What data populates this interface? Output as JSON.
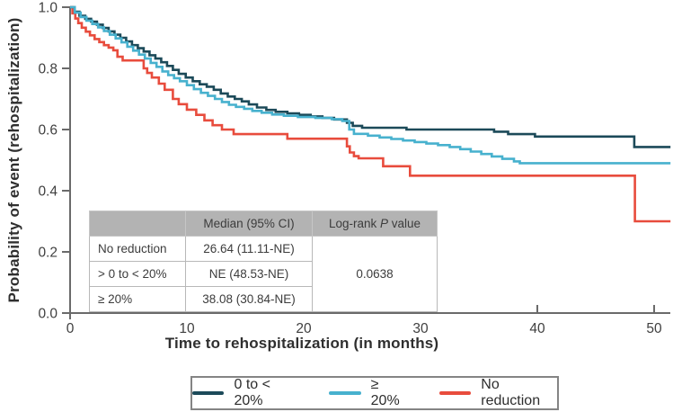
{
  "figure": {
    "ylabel": "Probability of event (rehospitalization)",
    "xlabel": "Time to rehospitalization (in months)"
  },
  "chart_data": {
    "type": "line",
    "subtype": "kaplan-meier-step",
    "title": "",
    "xlabel": "Time to rehospitalization (in months)",
    "ylabel": "Probability of event (rehospitalization)",
    "xlim": [
      0,
      51.4
    ],
    "ylim": [
      0.0,
      1.0
    ],
    "xticks": [
      "0",
      "10",
      "20",
      "30",
      "40",
      "50"
    ],
    "yticks": [
      "0.0",
      "0.2",
      "0.4",
      "0.6",
      "0.8",
      "1.0"
    ],
    "grid": "off",
    "legend_position": "bottom",
    "series": [
      {
        "name": "0 to < 20%",
        "color": "#1c4a59",
        "points": [
          [
            0,
            1
          ],
          [
            0.4,
            0.985
          ],
          [
            0.8,
            0.972
          ],
          [
            1.3,
            0.962
          ],
          [
            1.8,
            0.953
          ],
          [
            2.3,
            0.943
          ],
          [
            2.8,
            0.932
          ],
          [
            3.3,
            0.921
          ],
          [
            3.8,
            0.91
          ],
          [
            4.3,
            0.9
          ],
          [
            4.8,
            0.888
          ],
          [
            5.3,
            0.876
          ],
          [
            5.8,
            0.866
          ],
          [
            6.3,
            0.855
          ],
          [
            6.8,
            0.843
          ],
          [
            7.3,
            0.832
          ],
          [
            7.8,
            0.82
          ],
          [
            8.3,
            0.808
          ],
          [
            8.8,
            0.795
          ],
          [
            9.3,
            0.782
          ],
          [
            9.9,
            0.77
          ],
          [
            10.5,
            0.758
          ],
          [
            11.1,
            0.748
          ],
          [
            11.7,
            0.74
          ],
          [
            12.3,
            0.73
          ],
          [
            12.9,
            0.718
          ],
          [
            13.5,
            0.708
          ],
          [
            14.1,
            0.7
          ],
          [
            14.7,
            0.692
          ],
          [
            15.3,
            0.682
          ],
          [
            16,
            0.672
          ],
          [
            16.8,
            0.664
          ],
          [
            17.6,
            0.658
          ],
          [
            18.6,
            0.653
          ],
          [
            19.6,
            0.648
          ],
          [
            20.6,
            0.643
          ],
          [
            21.6,
            0.638
          ],
          [
            22.6,
            0.633
          ],
          [
            23.7,
            0.622
          ],
          [
            24.2,
            0.612
          ],
          [
            25,
            0.606
          ],
          [
            28.8,
            0.6
          ],
          [
            36.3,
            0.593
          ],
          [
            37.5,
            0.585
          ],
          [
            39.8,
            0.577
          ],
          [
            48.3,
            0.543
          ],
          [
            51.4,
            0.543
          ]
        ]
      },
      {
        "name": "≥ 20%",
        "color": "#47b1ce",
        "points": [
          [
            0,
            1
          ],
          [
            0.4,
            0.982
          ],
          [
            0.9,
            0.968
          ],
          [
            1.4,
            0.956
          ],
          [
            1.9,
            0.945
          ],
          [
            2.4,
            0.934
          ],
          [
            2.9,
            0.922
          ],
          [
            3.4,
            0.91
          ],
          [
            3.9,
            0.898
          ],
          [
            4.4,
            0.885
          ],
          [
            4.9,
            0.871
          ],
          [
            5.4,
            0.858
          ],
          [
            5.9,
            0.845
          ],
          [
            6.4,
            0.832
          ],
          [
            6.9,
            0.818
          ],
          [
            7.4,
            0.805
          ],
          [
            7.9,
            0.79
          ],
          [
            8.4,
            0.778
          ],
          [
            8.9,
            0.768
          ],
          [
            9.4,
            0.758
          ],
          [
            10,
            0.745
          ],
          [
            10.6,
            0.732
          ],
          [
            11.2,
            0.72
          ],
          [
            11.8,
            0.71
          ],
          [
            12.4,
            0.7
          ],
          [
            13,
            0.69
          ],
          [
            13.6,
            0.681
          ],
          [
            14.2,
            0.674
          ],
          [
            14.9,
            0.668
          ],
          [
            15.6,
            0.661
          ],
          [
            16.4,
            0.655
          ],
          [
            17.3,
            0.649
          ],
          [
            18.3,
            0.645
          ],
          [
            19.5,
            0.641
          ],
          [
            21,
            0.638
          ],
          [
            22.4,
            0.634
          ],
          [
            23.3,
            0.628
          ],
          [
            23.9,
            0.6
          ],
          [
            24.3,
            0.586
          ],
          [
            25.5,
            0.58
          ],
          [
            26.5,
            0.574
          ],
          [
            27.5,
            0.569
          ],
          [
            28.5,
            0.564
          ],
          [
            29.5,
            0.559
          ],
          [
            30.5,
            0.554
          ],
          [
            31.5,
            0.549
          ],
          [
            32.5,
            0.543
          ],
          [
            33.4,
            0.536
          ],
          [
            34.3,
            0.528
          ],
          [
            35.2,
            0.52
          ],
          [
            36.1,
            0.512
          ],
          [
            37,
            0.504
          ],
          [
            38,
            0.496
          ],
          [
            38.5,
            0.49
          ],
          [
            51.4,
            0.49
          ]
        ]
      },
      {
        "name": "No reduction",
        "color": "#e84c3d",
        "points": [
          [
            0,
            1
          ],
          [
            0.2,
            0.98
          ],
          [
            0.45,
            0.963
          ],
          [
            0.7,
            0.948
          ],
          [
            1,
            0.933
          ],
          [
            1.35,
            0.92
          ],
          [
            1.7,
            0.908
          ],
          [
            2.1,
            0.896
          ],
          [
            2.5,
            0.886
          ],
          [
            2.9,
            0.876
          ],
          [
            3.3,
            0.868
          ],
          [
            3.7,
            0.859
          ],
          [
            4.05,
            0.838
          ],
          [
            4.5,
            0.826
          ],
          [
            6.3,
            0.8
          ],
          [
            6.6,
            0.785
          ],
          [
            7,
            0.77
          ],
          [
            7.6,
            0.75
          ],
          [
            8.1,
            0.73
          ],
          [
            8.8,
            0.7
          ],
          [
            9.3,
            0.683
          ],
          [
            10,
            0.665
          ],
          [
            10.8,
            0.648
          ],
          [
            11.5,
            0.63
          ],
          [
            12.2,
            0.614
          ],
          [
            13,
            0.6
          ],
          [
            14,
            0.585
          ],
          [
            18.6,
            0.57
          ],
          [
            23.7,
            0.545
          ],
          [
            23.95,
            0.525
          ],
          [
            24.3,
            0.513
          ],
          [
            24.7,
            0.506
          ],
          [
            26.8,
            0.48
          ],
          [
            29.1,
            0.449
          ],
          [
            48.35,
            0.3
          ],
          [
            51.4,
            0.3
          ]
        ]
      }
    ]
  },
  "table": {
    "header": {
      "median": "Median (95% CI)",
      "logrank_prefix": "Log-rank ",
      "logrank_p": "P",
      "logrank_suffix": " value"
    },
    "rows": [
      {
        "label": "No reduction",
        "median": "26.64 (11.11-NE)"
      },
      {
        "label": "> 0 to < 20%",
        "median": "NE (48.53-NE)"
      },
      {
        "label": "≥ 20%",
        "median": "38.08 (30.84-NE)"
      }
    ],
    "p_value": "0.0638"
  },
  "legend": {
    "items": [
      {
        "label": "0 to < 20%",
        "color": "#1c4a59"
      },
      {
        "label": "≥ 20%",
        "color": "#47b1ce"
      },
      {
        "label": "No reduction",
        "color": "#e84c3d"
      }
    ]
  },
  "colors": {
    "axis": "#6a6a6a",
    "tick_text": "#3f3f3f",
    "table_header_bg": "#b3b3b3",
    "legend_border": "#848484"
  }
}
